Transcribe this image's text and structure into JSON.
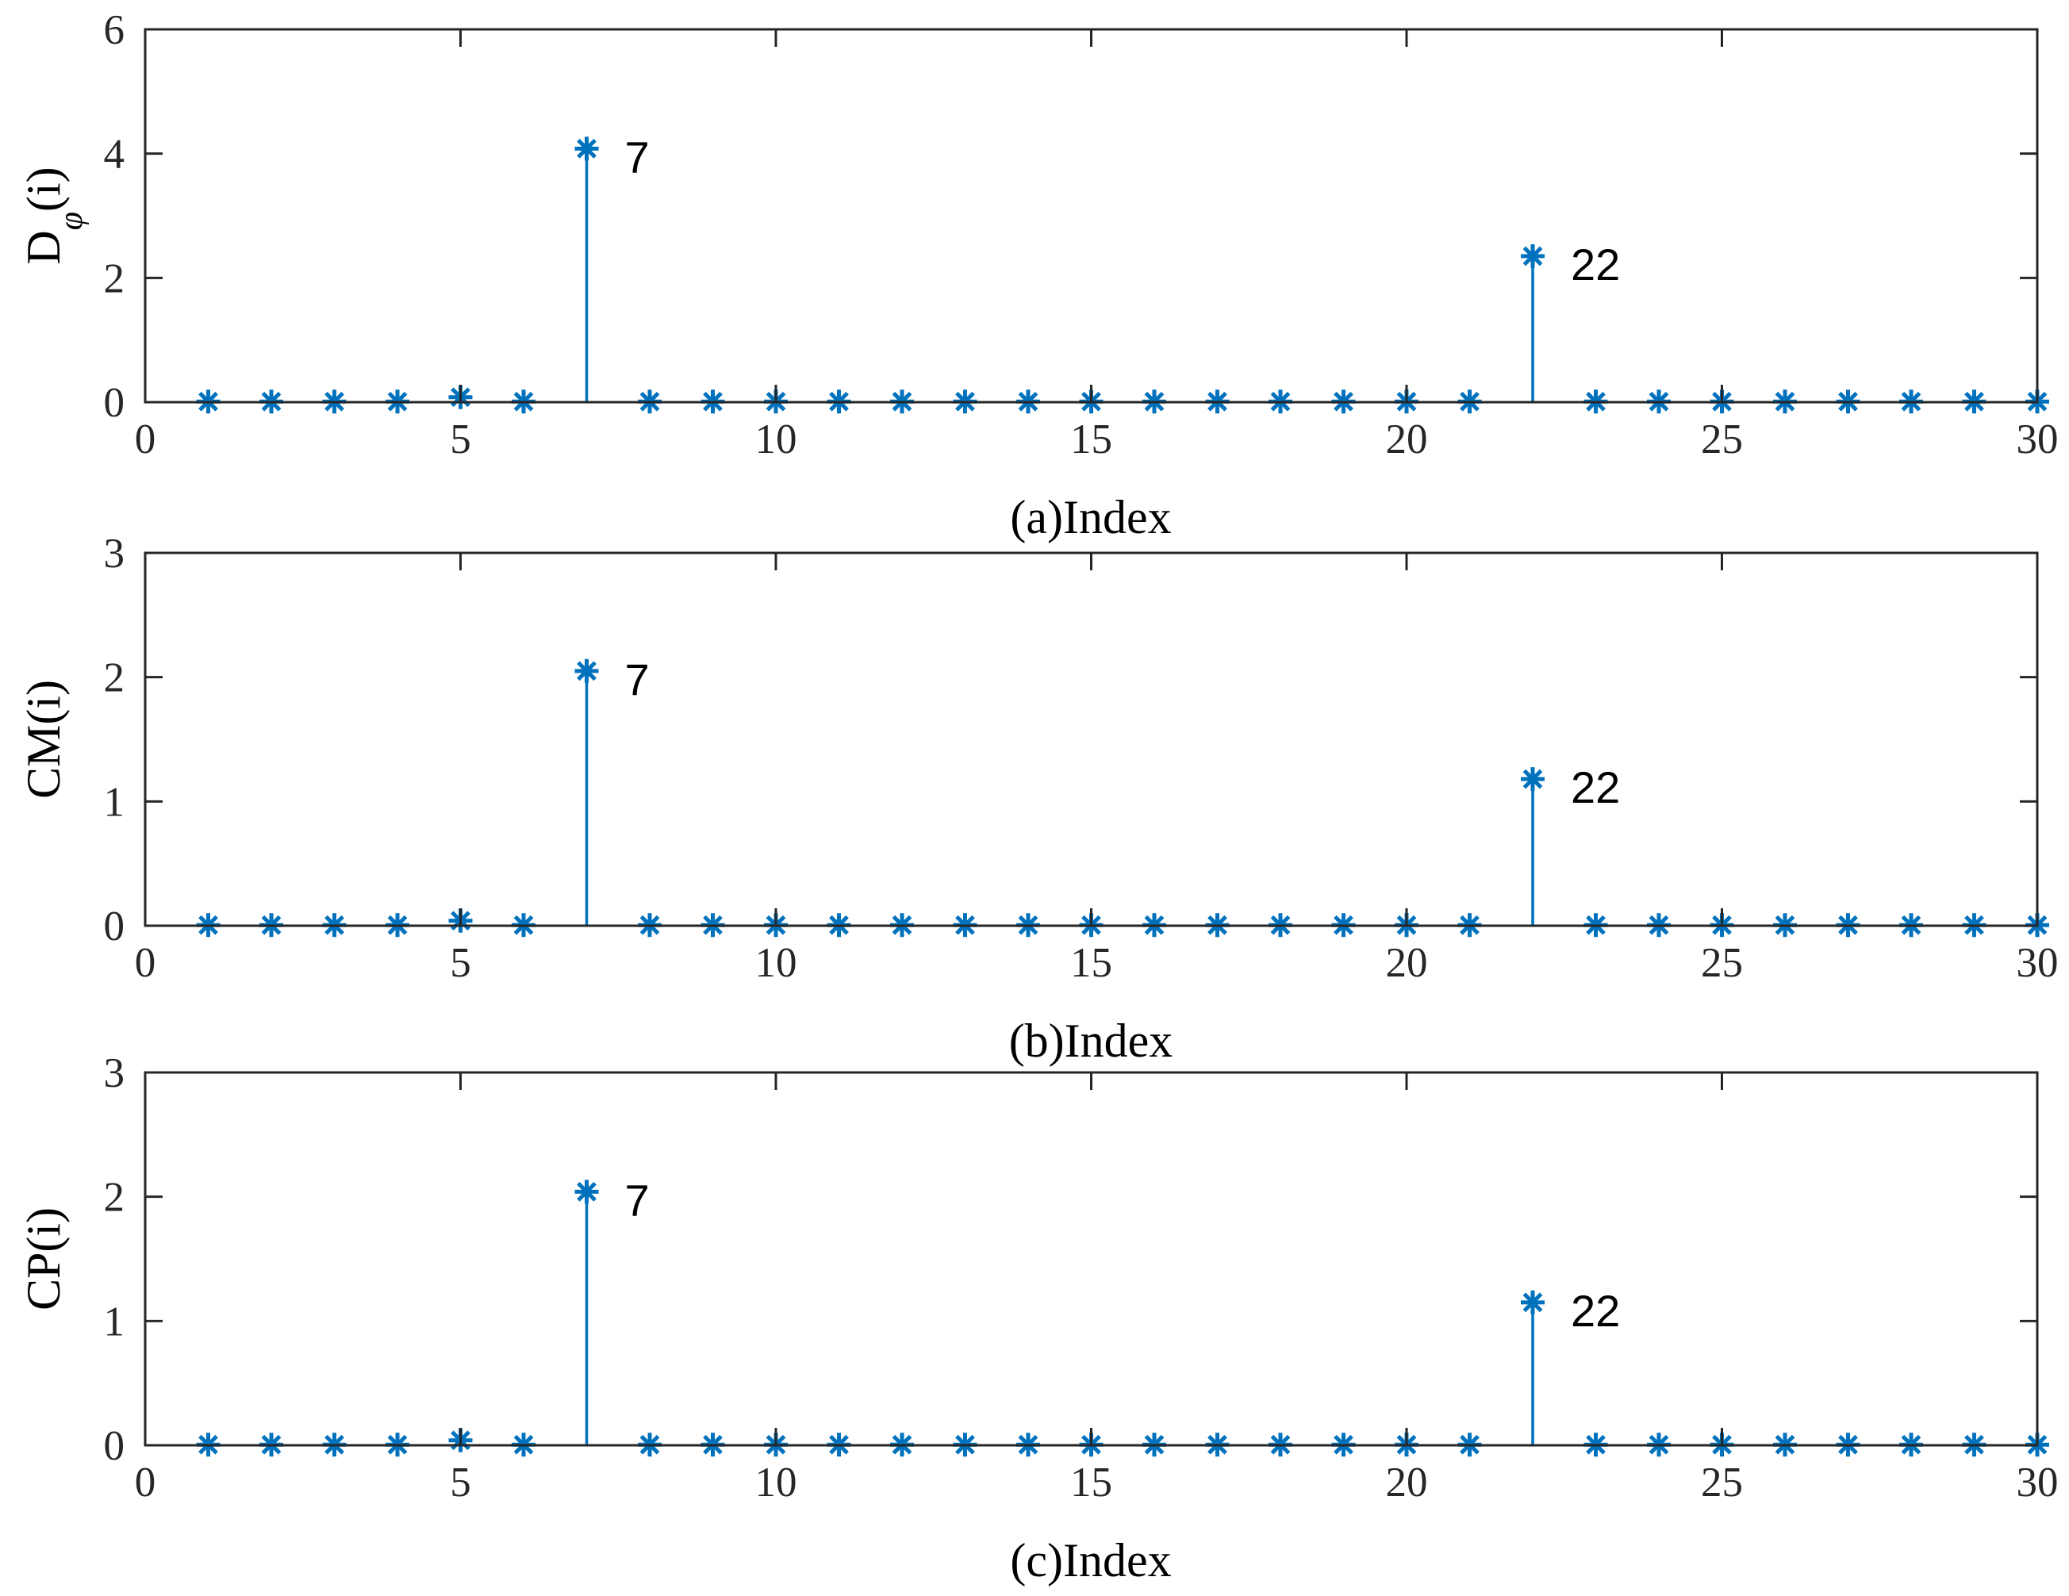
{
  "figure": {
    "series_color": "#0072BD"
  },
  "chart_data": [
    {
      "id": "a",
      "type": "stem",
      "xlabel": "(a)Index",
      "ylabel_main": "D",
      "ylabel_sub": "φ",
      "ylabel_tail": "(i)",
      "xlim": [
        0,
        30
      ],
      "ylim": [
        0,
        6
      ],
      "xticks": [
        0,
        5,
        10,
        15,
        20,
        25,
        30
      ],
      "yticks": [
        0,
        2,
        4,
        6
      ],
      "x": [
        1,
        2,
        3,
        4,
        5,
        6,
        7,
        8,
        9,
        10,
        11,
        12,
        13,
        14,
        15,
        16,
        17,
        18,
        19,
        20,
        21,
        22,
        23,
        24,
        25,
        26,
        27,
        28,
        29,
        30
      ],
      "values": [
        0.01,
        0.01,
        0.01,
        0.01,
        0.08,
        0.01,
        4.08,
        0.01,
        0.01,
        0.01,
        0.01,
        0.01,
        0.01,
        0.01,
        0.01,
        0.01,
        0.01,
        0.01,
        0.01,
        0.01,
        0.01,
        2.35,
        0.01,
        0.01,
        0.01,
        0.01,
        0.01,
        0.01,
        0.01,
        0.01
      ],
      "annotations": [
        {
          "x": 7,
          "label": "7"
        },
        {
          "x": 22,
          "label": "22"
        }
      ]
    },
    {
      "id": "b",
      "type": "stem",
      "xlabel": "(b)Index",
      "ylabel_main": "CM(i)",
      "xlim": [
        0,
        30
      ],
      "ylim": [
        0,
        3
      ],
      "xticks": [
        0,
        5,
        10,
        15,
        20,
        25,
        30
      ],
      "yticks": [
        0,
        1,
        2,
        3
      ],
      "x": [
        1,
        2,
        3,
        4,
        5,
        6,
        7,
        8,
        9,
        10,
        11,
        12,
        13,
        14,
        15,
        16,
        17,
        18,
        19,
        20,
        21,
        22,
        23,
        24,
        25,
        26,
        27,
        28,
        29,
        30
      ],
      "values": [
        0.005,
        0.005,
        0.005,
        0.005,
        0.04,
        0.005,
        2.05,
        0.005,
        0.005,
        0.005,
        0.005,
        0.005,
        0.005,
        0.005,
        0.005,
        0.005,
        0.005,
        0.005,
        0.005,
        0.005,
        0.005,
        1.18,
        0.005,
        0.005,
        0.005,
        0.005,
        0.005,
        0.005,
        0.005,
        0.005
      ],
      "annotations": [
        {
          "x": 7,
          "label": "7"
        },
        {
          "x": 22,
          "label": "22"
        }
      ]
    },
    {
      "id": "c",
      "type": "stem",
      "xlabel": "(c)Index",
      "ylabel_main": "CP(i)",
      "xlim": [
        0,
        30
      ],
      "ylim": [
        0,
        3
      ],
      "xticks": [
        0,
        5,
        10,
        15,
        20,
        25,
        30
      ],
      "yticks": [
        0,
        1,
        2,
        3
      ],
      "x": [
        1,
        2,
        3,
        4,
        5,
        6,
        7,
        8,
        9,
        10,
        11,
        12,
        13,
        14,
        15,
        16,
        17,
        18,
        19,
        20,
        21,
        22,
        23,
        24,
        25,
        26,
        27,
        28,
        29,
        30
      ],
      "values": [
        0.005,
        0.005,
        0.005,
        0.005,
        0.04,
        0.005,
        2.04,
        0.005,
        0.005,
        0.005,
        0.005,
        0.005,
        0.005,
        0.005,
        0.005,
        0.005,
        0.005,
        0.005,
        0.005,
        0.005,
        0.005,
        1.15,
        0.005,
        0.005,
        0.005,
        0.005,
        0.005,
        0.005,
        0.005,
        0.005
      ],
      "annotations": [
        {
          "x": 7,
          "label": "7"
        },
        {
          "x": 22,
          "label": "22"
        }
      ]
    }
  ]
}
